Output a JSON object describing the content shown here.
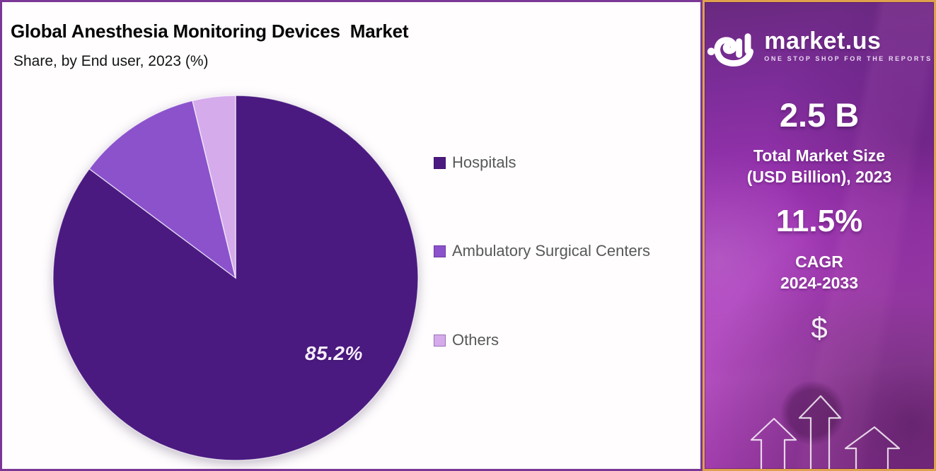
{
  "header": {
    "title": "Global Anesthesia Monitoring Devices  Market",
    "subtitle": "Share, by End user, 2023 (%)"
  },
  "chart_data": {
    "type": "pie",
    "title": "Global Anesthesia Monitoring Devices Market",
    "subtitle": "Share, by End user, 2023 (%)",
    "unit": "%",
    "direction": "clockwise",
    "start_angle_deg": 0,
    "legend_position": "right",
    "slices": [
      {
        "label": "Hospitals",
        "value": 85.2,
        "color": "#4a1a80",
        "data_label": "85.2%"
      },
      {
        "label": "Ambulatory Surgical Centers",
        "value": 11.0,
        "color": "#8b52cc",
        "data_label": ""
      },
      {
        "label": "Others",
        "value": 3.8,
        "color": "#d5abec",
        "data_label": ""
      }
    ]
  },
  "sidebar": {
    "logo": {
      "brand": "market.us",
      "tagline": "ONE STOP SHOP FOR THE REPORTS",
      "icon": "market-us-swoosh-icon"
    },
    "stats": [
      {
        "value": "2.5 B",
        "caption": "Total Market Size\n(USD Billion), 2023"
      },
      {
        "value": "11.5%",
        "caption": "CAGR\n2024-2033"
      }
    ],
    "dollar_symbol": "$",
    "accent_border_color": "#dfa14c",
    "background_colors": [
      "#69297f",
      "#ad3fbe",
      "#9f3aaa"
    ],
    "decor_icons": [
      "dollar-icon",
      "up-arrow-icon",
      "up-arrow-icon",
      "up-arrow-icon"
    ]
  },
  "frame": {
    "chart_border_color": "#7b3796"
  }
}
